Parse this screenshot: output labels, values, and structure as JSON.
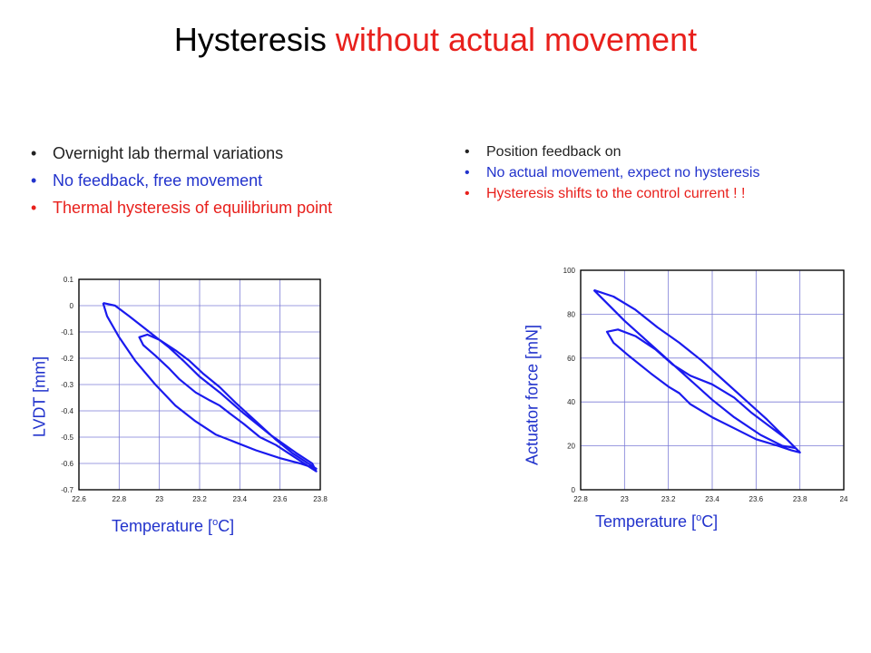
{
  "title": {
    "part1": "Hysteresis ",
    "part2": "without actual movement"
  },
  "left_bullets": [
    {
      "text": "Overnight lab thermal variations",
      "color": "#222222"
    },
    {
      "text": "No feedback, free movement",
      "color": "#2233cc"
    },
    {
      "text": "Thermal hysteresis of equilibrium point",
      "color": "#e8201c"
    }
  ],
  "right_bullets": [
    {
      "text": "Position feedback on",
      "color": "#222222"
    },
    {
      "text": "No actual movement, expect no hysteresis",
      "color": "#2233cc"
    },
    {
      "text": "Hysteresis shifts to the control current ! !",
      "color": "#e8201c"
    }
  ],
  "left_chart_labels": {
    "ylabel": "LVDT [mm]",
    "xlabel_pre": "Temperature [",
    "xlabel_sup": "o",
    "xlabel_post": "C]"
  },
  "right_chart_labels": {
    "ylabel": "Actuator force [mN]",
    "xlabel_pre": "Temperature [",
    "xlabel_sup": "o",
    "xlabel_post": "C]"
  },
  "chart_data": [
    {
      "type": "line",
      "xlabel": "Temperature [oC]",
      "ylabel": "LVDT [mm]",
      "xlim": [
        22.6,
        23.8
      ],
      "ylim": [
        -0.7,
        0.1
      ],
      "xticks": [
        "22.6",
        "22.8",
        "23",
        "23.2",
        "23.4",
        "23.6",
        "23.8"
      ],
      "yticks": [
        "0.1",
        "0",
        "-0.1",
        "-0.2",
        "-0.3",
        "-0.4",
        "-0.5",
        "-0.6",
        "-0.7"
      ],
      "grid": true,
      "series_color": "#1a1aee",
      "series": [
        {
          "x": [
            22.72,
            22.78,
            22.85,
            22.95,
            23.05,
            23.12,
            23.2,
            23.3,
            23.42,
            23.55,
            23.68,
            23.76,
            23.78,
            23.74,
            23.66,
            23.58,
            23.5,
            23.42,
            23.35,
            23.3,
            23.25,
            23.18,
            23.1,
            23.05,
            22.98,
            22.92,
            22.9,
            22.94,
            23.0,
            23.08,
            23.15,
            23.22,
            23.3,
            23.38,
            23.48,
            23.58,
            23.66,
            23.74,
            23.78,
            23.7,
            23.6,
            23.48,
            23.38,
            23.28,
            23.18,
            23.08,
            22.98,
            22.88,
            22.8,
            22.74,
            22.72
          ],
          "y": [
            0.01,
            0.0,
            -0.04,
            -0.1,
            -0.16,
            -0.21,
            -0.27,
            -0.33,
            -0.41,
            -0.49,
            -0.56,
            -0.6,
            -0.63,
            -0.61,
            -0.57,
            -0.53,
            -0.5,
            -0.45,
            -0.41,
            -0.38,
            -0.36,
            -0.33,
            -0.28,
            -0.24,
            -0.19,
            -0.15,
            -0.12,
            -0.11,
            -0.13,
            -0.17,
            -0.21,
            -0.26,
            -0.31,
            -0.37,
            -0.44,
            -0.51,
            -0.56,
            -0.6,
            -0.62,
            -0.6,
            -0.58,
            -0.55,
            -0.52,
            -0.49,
            -0.44,
            -0.38,
            -0.3,
            -0.21,
            -0.12,
            -0.04,
            0.01
          ]
        }
      ]
    },
    {
      "type": "line",
      "xlabel": "Temperature [oC]",
      "ylabel": "Actuator force [mN]",
      "xlim": [
        22.8,
        24
      ],
      "ylim": [
        0,
        100
      ],
      "xticks": [
        "22.8",
        "23",
        "23.2",
        "23.4",
        "23.6",
        "23.8",
        "24"
      ],
      "yticks": [
        "100",
        "80",
        "60",
        "40",
        "20",
        "0"
      ],
      "grid": true,
      "series_color": "#1a1aee",
      "series": [
        {
          "x": [
            22.86,
            22.95,
            23.05,
            23.15,
            23.25,
            23.35,
            23.45,
            23.55,
            23.65,
            23.72,
            23.78,
            23.8,
            23.76,
            23.7,
            23.6,
            23.5,
            23.4,
            23.3,
            23.25,
            23.2,
            23.12,
            23.02,
            22.95,
            22.92,
            22.97,
            23.05,
            23.14,
            23.22,
            23.3,
            23.4,
            23.5,
            23.58,
            23.66,
            23.74,
            23.78,
            23.72,
            23.62,
            23.5,
            23.4,
            23.3,
            23.2,
            23.1,
            23.0,
            22.92,
            22.86
          ],
          "y": [
            91,
            88,
            82,
            74,
            67,
            59,
            50,
            41,
            32,
            25,
            19,
            17,
            18,
            20,
            23,
            28,
            33,
            39,
            44,
            47,
            53,
            61,
            67,
            72,
            73,
            70,
            64,
            57,
            52,
            48,
            42,
            35,
            29,
            23,
            19,
            20,
            25,
            33,
            41,
            50,
            59,
            68,
            77,
            85,
            91
          ]
        }
      ]
    }
  ]
}
